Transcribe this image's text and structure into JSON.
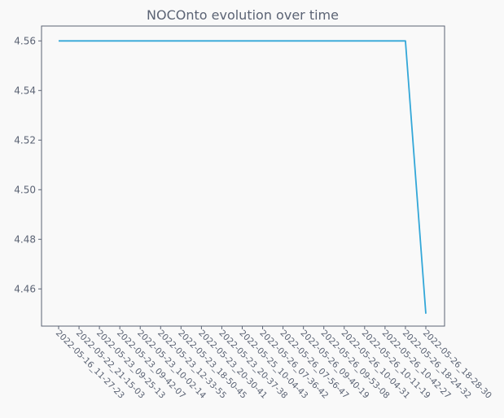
{
  "chart_data": {
    "type": "line",
    "title": "NOCOnto evolution over time",
    "xlabel": "",
    "ylabel": "",
    "categories": [
      "2022-05-16_11-27-23",
      "2022-05-22_21-15-03",
      "2022-05-23_09-25-13",
      "2022-05-23_09-42-07",
      "2022-05-23_10-02-14",
      "2022-05-23_12-33-55",
      "2022-05-23_18-50-45",
      "2022-05-23_20-30-41",
      "2022-05-23_20-37-38",
      "2022-05-25_10-04-43",
      "2022-05-26_07-36-42",
      "2022-05-26_07-56-47",
      "2022-05-26_09-40-19",
      "2022-05-26_09-53-08",
      "2022-05-26_10-04-31",
      "2022-05-26_10-11-19",
      "2022-05-26_10-42-27",
      "2022-05-26_18-24-32",
      "2022-05-26_18-28-30"
    ],
    "series": [
      {
        "values": [
          4.56,
          4.56,
          4.56,
          4.56,
          4.56,
          4.56,
          4.56,
          4.56,
          4.56,
          4.56,
          4.56,
          4.56,
          4.56,
          4.56,
          4.56,
          4.56,
          4.56,
          4.56,
          4.45
        ],
        "color": "#33a7d8"
      }
    ],
    "ylim": [
      4.445,
      4.566
    ],
    "yticks": [
      4.46,
      4.48,
      4.5,
      4.52,
      4.54,
      4.56
    ],
    "grid": false,
    "colors": {
      "axis": "#5b6374",
      "background": "#f9f9f9",
      "plot_background": "#f9f9f9"
    }
  }
}
